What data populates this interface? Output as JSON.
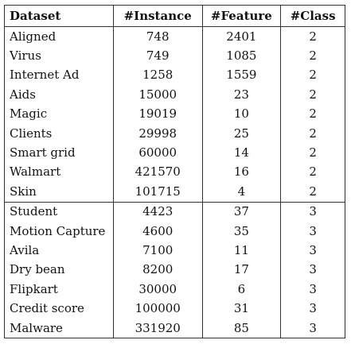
{
  "table": {
    "headers": [
      "Dataset",
      "#Instance",
      "#Feature",
      "#Class"
    ],
    "groups": [
      [
        [
          "Aligned",
          "748",
          "2401",
          "2"
        ],
        [
          "Virus",
          "749",
          "1085",
          "2"
        ],
        [
          "Internet Ad",
          "1258",
          "1559",
          "2"
        ],
        [
          "Aids",
          "15000",
          "23",
          "2"
        ],
        [
          "Magic",
          "19019",
          "10",
          "2"
        ],
        [
          "Clients",
          "29998",
          "25",
          "2"
        ],
        [
          "Smart grid",
          "60000",
          "14",
          "2"
        ],
        [
          "Walmart",
          "421570",
          "16",
          "2"
        ],
        [
          "Skin",
          "101715",
          "4",
          "2"
        ]
      ],
      [
        [
          "Student",
          "4423",
          "37",
          "3"
        ],
        [
          "Motion Capture",
          "4600",
          "35",
          "3"
        ],
        [
          "Avila",
          "7100",
          "11",
          "3"
        ],
        [
          "Dry bean",
          "8200",
          "17",
          "3"
        ],
        [
          "Flipkart",
          "30000",
          "6",
          "3"
        ],
        [
          "Credit score",
          "100000",
          "31",
          "3"
        ],
        [
          "Malware",
          "331920",
          "85",
          "3"
        ]
      ]
    ]
  }
}
